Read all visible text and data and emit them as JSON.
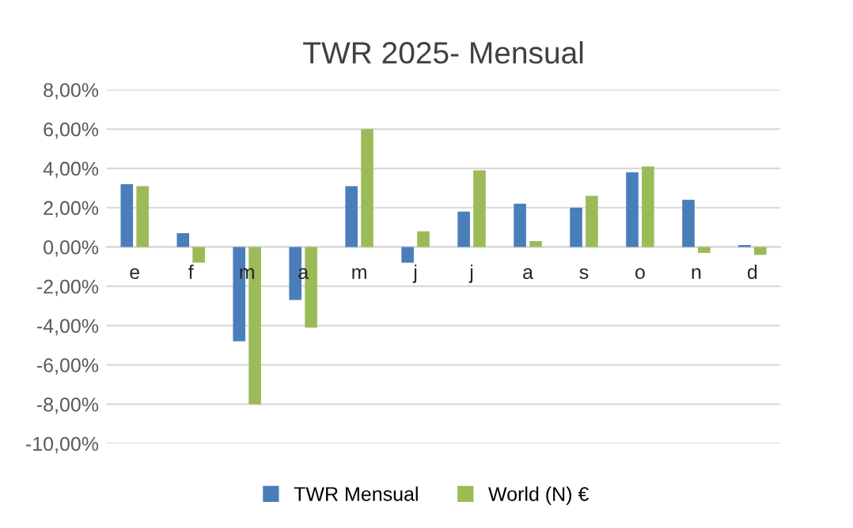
{
  "chart_data": {
    "type": "bar",
    "title": "TWR 2025- Mensual",
    "categories": [
      "e",
      "f",
      "m",
      "a",
      "m",
      "j",
      "j",
      "a",
      "s",
      "o",
      "n",
      "d"
    ],
    "series": [
      {
        "name": "TWR Mensual",
        "color": "#4a7ebb",
        "values": [
          3.2,
          0.7,
          -4.8,
          -2.7,
          3.1,
          -0.8,
          1.8,
          2.2,
          2.0,
          3.8,
          2.4,
          0.1
        ]
      },
      {
        "name": "World (N) €",
        "color": "#9bbb59",
        "values": [
          3.1,
          -0.8,
          -8.0,
          -4.1,
          6.0,
          0.8,
          3.9,
          0.3,
          2.6,
          4.1,
          -0.3,
          -0.4
        ]
      }
    ],
    "ylim": [
      -10,
      8
    ],
    "yticks": [
      {
        "value": -10,
        "label": "-10,00%"
      },
      {
        "value": -8,
        "label": "-8,00%"
      },
      {
        "value": -6,
        "label": "-6,00%"
      },
      {
        "value": -4,
        "label": "-4,00%"
      },
      {
        "value": -2,
        "label": "-2,00%"
      },
      {
        "value": 0,
        "label": "0,00%"
      },
      {
        "value": 2,
        "label": "2,00%"
      },
      {
        "value": 4,
        "label": "4,00%"
      },
      {
        "value": 6,
        "label": "6,00%"
      },
      {
        "value": 8,
        "label": "8,00%"
      }
    ],
    "grid": "y",
    "legend": "bottom"
  }
}
